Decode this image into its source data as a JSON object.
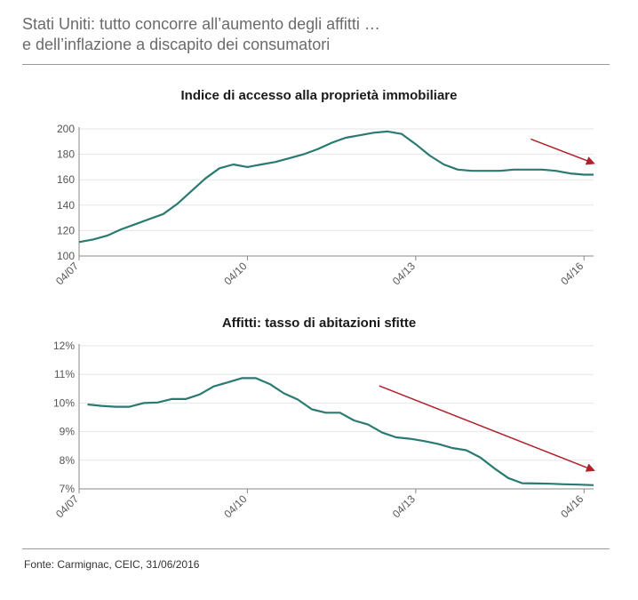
{
  "header": {
    "title_line1": "Stati Uniti: tutto concorre all’aumento degli affitti …",
    "title_line2": "e dell’inflazione a discapito dei consumatori"
  },
  "footer": {
    "source": "Fonte: Carmignac, CEIC, 31/06/2016"
  },
  "colors": {
    "line": "#2a7a72",
    "arrow": "#b0212b",
    "axis": "#888888",
    "grid": "#e6e6e6"
  },
  "chart_data": [
    {
      "type": "line",
      "title": "Indice di accesso alla proprietà immobiliare",
      "xlabel": "",
      "ylabel": "",
      "xlim": [
        2007.25,
        2016.42
      ],
      "ylim": [
        100,
        200
      ],
      "yticks": [
        100,
        120,
        140,
        160,
        180,
        200
      ],
      "ytick_labels": [
        "100",
        "120",
        "140",
        "160",
        "180",
        "200"
      ],
      "xticks": [
        2007.25,
        2010.25,
        2013.25,
        2016.25
      ],
      "xtick_labels": [
        "04/07",
        "04/10",
        "04/13",
        "04/16"
      ],
      "grid": true,
      "series": [
        {
          "x": [
            2007.25,
            2007.5,
            2007.75,
            2008.0,
            2008.25,
            2008.5,
            2008.75,
            2009.0,
            2009.25,
            2009.5,
            2009.75,
            2010.0,
            2010.25,
            2010.5,
            2010.75,
            2011.0,
            2011.25,
            2011.5,
            2011.75,
            2012.0,
            2012.25,
            2012.5,
            2012.75,
            2013.0,
            2013.25,
            2013.5,
            2013.75,
            2014.0,
            2014.25,
            2014.5,
            2014.75,
            2015.0,
            2015.25,
            2015.5,
            2015.75,
            2016.0,
            2016.25,
            2016.42
          ],
          "y": [
            111,
            113,
            116,
            121,
            125,
            129,
            133,
            141,
            151,
            161,
            169,
            172,
            170,
            172,
            174,
            177,
            180,
            184,
            189,
            193,
            195,
            197,
            198,
            196,
            188,
            179,
            172,
            168,
            167,
            167,
            167,
            168,
            168,
            168,
            167,
            165,
            164,
            164
          ]
        }
      ],
      "annotations": [
        {
          "type": "arrow",
          "from": [
            2015.3,
            192
          ],
          "to": [
            2016.42,
            173
          ]
        }
      ]
    },
    {
      "type": "line",
      "title": "Affitti: tasso di abitazioni sfitte",
      "xlabel": "",
      "ylabel": "",
      "xlim": [
        2007.25,
        2016.42
      ],
      "ylim": [
        7,
        12
      ],
      "yticks": [
        7,
        8,
        9,
        10,
        11,
        12
      ],
      "ytick_labels": [
        "7%",
        "8%",
        "9%",
        "10%",
        "11%",
        "12%"
      ],
      "xticks": [
        2007.25,
        2010.25,
        2013.25,
        2016.25
      ],
      "xtick_labels": [
        "04/07",
        "04/10",
        "04/13",
        "04/16"
      ],
      "grid": true,
      "series": [
        {
          "x": [
            2007.4,
            2007.65,
            2007.9,
            2008.15,
            2008.4,
            2008.65,
            2008.9,
            2009.15,
            2009.4,
            2009.65,
            2009.9,
            2010.15,
            2010.4,
            2010.65,
            2010.9,
            2011.15,
            2011.4,
            2011.65,
            2011.9,
            2012.15,
            2012.4,
            2012.65,
            2012.9,
            2013.15,
            2013.4,
            2013.65,
            2013.9,
            2014.15,
            2014.4,
            2014.65,
            2014.9,
            2015.15,
            2015.4,
            2015.65,
            2015.9,
            2016.15,
            2016.42
          ],
          "y": [
            9.95,
            9.9,
            9.87,
            9.87,
            10.0,
            10.02,
            10.14,
            10.14,
            10.3,
            10.58,
            10.72,
            10.87,
            10.87,
            10.66,
            10.34,
            10.12,
            9.78,
            9.66,
            9.66,
            9.39,
            9.25,
            8.97,
            8.8,
            8.75,
            8.67,
            8.57,
            8.43,
            8.35,
            8.1,
            7.72,
            7.38,
            7.2,
            7.19,
            7.18,
            7.16,
            7.15,
            7.13
          ]
        }
      ],
      "annotations": [
        {
          "type": "arrow",
          "from": [
            2012.6,
            10.6
          ],
          "to": [
            2016.42,
            7.65
          ]
        }
      ]
    }
  ]
}
